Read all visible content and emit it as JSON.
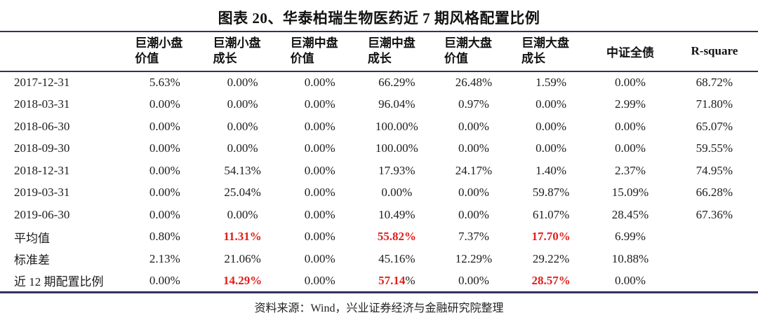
{
  "title": "图表 20、华泰柏瑞生物医药近 7 期风格配置比例",
  "footer": "资料来源：Wind，兴业证券经济与金融研究院整理",
  "colors": {
    "rule": "#32315e",
    "highlight": "#e01f1a",
    "text": "#1c1c1c"
  },
  "table": {
    "col_widths": [
      "16.6%",
      "10.3%",
      "10.2%",
      "10.2%",
      "10.1%",
      "10.2%",
      "10.2%",
      "10.7%",
      "11.5%"
    ],
    "columns": [
      {
        "line1": "",
        "line2": ""
      },
      {
        "line1": "巨潮小盘",
        "line2": "价值"
      },
      {
        "line1": "巨潮小盘",
        "line2": "成长"
      },
      {
        "line1": "巨潮中盘",
        "line2": "价值"
      },
      {
        "line1": "巨潮中盘",
        "line2": "成长"
      },
      {
        "line1": "巨潮大盘",
        "line2": "价值"
      },
      {
        "line1": "巨潮大盘",
        "line2": "成长"
      },
      {
        "line1": "中证全债",
        "line2": ""
      },
      {
        "line1": "R-square",
        "line2": ""
      }
    ],
    "rows": [
      {
        "label": "2017-12-31",
        "cells": [
          "5.63%",
          "0.00%",
          "0.00%",
          "66.29%",
          "26.48%",
          "1.59%",
          "0.00%",
          "68.72%"
        ]
      },
      {
        "label": "2018-03-31",
        "cells": [
          "0.00%",
          "0.00%",
          "0.00%",
          "96.04%",
          "0.97%",
          "0.00%",
          "2.99%",
          "71.80%"
        ]
      },
      {
        "label": "2018-06-30",
        "cells": [
          "0.00%",
          "0.00%",
          "0.00%",
          "100.00%",
          "0.00%",
          "0.00%",
          "0.00%",
          "65.07%"
        ]
      },
      {
        "label": "2018-09-30",
        "cells": [
          "0.00%",
          "0.00%",
          "0.00%",
          "100.00%",
          "0.00%",
          "0.00%",
          "0.00%",
          "59.55%"
        ]
      },
      {
        "label": "2018-12-31",
        "cells": [
          "0.00%",
          "54.13%",
          "0.00%",
          "17.93%",
          "24.17%",
          "1.40%",
          "2.37%",
          "74.95%"
        ]
      },
      {
        "label": "2019-03-31",
        "cells": [
          "0.00%",
          "25.04%",
          "0.00%",
          "0.00%",
          "0.00%",
          "59.87%",
          "15.09%",
          "66.28%"
        ]
      },
      {
        "label": "2019-06-30",
        "cells": [
          "0.00%",
          "0.00%",
          "0.00%",
          "10.49%",
          "0.00%",
          "61.07%",
          "28.45%",
          "67.36%"
        ]
      },
      {
        "label": "平均值",
        "cells": [
          "0.80%",
          {
            "text": "11.31%",
            "highlight": true
          },
          "0.00%",
          {
            "text": "55.82%",
            "highlight": true
          },
          "7.37%",
          {
            "text": "17.70%",
            "highlight": true
          },
          "6.99%",
          ""
        ]
      },
      {
        "label": "标准差",
        "cells": [
          "2.13%",
          "21.06%",
          "0.00%",
          "45.16%",
          "12.29%",
          "29.22%",
          "10.88%",
          ""
        ]
      },
      {
        "label": "近 12 期配置比例",
        "cells": [
          "0.00%",
          {
            "text": "14.29%",
            "highlight": true
          },
          "0.00%",
          {
            "text": "57.14",
            "suffix": "%",
            "highlight": true
          },
          "0.00%",
          {
            "text": "28.57%",
            "highlight": true
          },
          "0.00%",
          ""
        ]
      }
    ]
  }
}
